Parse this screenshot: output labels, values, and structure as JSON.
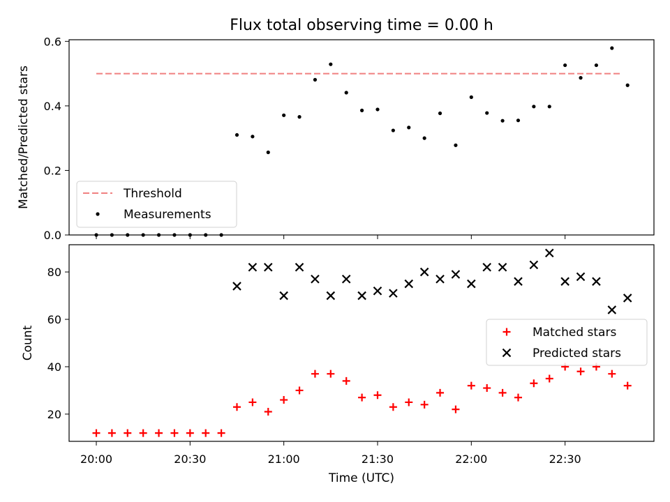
{
  "title": "Flux total observing time = 0.00 h",
  "chart_data": [
    {
      "type": "scatter",
      "name": "ratio-panel",
      "ylabel": "Matched/Predicted stars",
      "xlabel": "",
      "ylim": [
        0,
        0.605
      ],
      "y_ticks": [
        0.0,
        0.2,
        0.4,
        0.6
      ],
      "y_tick_labels": [
        "0.0",
        "0.2",
        "0.4",
        "0.6"
      ],
      "threshold": {
        "name": "Threshold",
        "value": 0.5,
        "x_start": "20:00",
        "x_end": "22:48",
        "color": "#f08080"
      },
      "series": [
        {
          "name": "Measurements",
          "color": "#000000",
          "marker": "dot",
          "x": [
            "20:00",
            "20:05",
            "20:10",
            "20:15",
            "20:20",
            "20:25",
            "20:30",
            "20:35",
            "20:40",
            "20:45",
            "20:50",
            "20:55",
            "21:00",
            "21:05",
            "21:10",
            "21:15",
            "21:20",
            "21:25",
            "21:30",
            "21:35",
            "21:40",
            "21:45",
            "21:50",
            "21:55",
            "22:00",
            "22:05",
            "22:10",
            "22:15",
            "22:20",
            "22:25",
            "22:30",
            "22:35",
            "22:40",
            "22:45",
            "22:50"
          ],
          "y": [
            0.0,
            0.0,
            0.0,
            0.0,
            0.0,
            0.0,
            0.0,
            0.0,
            0.0,
            0.31,
            0.305,
            0.256,
            0.371,
            0.366,
            0.481,
            0.529,
            0.441,
            0.386,
            0.389,
            0.324,
            0.333,
            0.3,
            0.377,
            0.278,
            0.427,
            0.378,
            0.354,
            0.355,
            0.398,
            0.398,
            0.526,
            0.487,
            0.526,
            0.579,
            0.464
          ]
        }
      ],
      "legend": {
        "placement": "lower-left",
        "entries": [
          "Threshold",
          "Measurements"
        ]
      }
    },
    {
      "type": "scatter",
      "name": "count-panel",
      "ylabel": "Count",
      "xlabel": "Time (UTC)",
      "ylim": [
        8.5,
        91.5
      ],
      "y_ticks": [
        20,
        40,
        60,
        80
      ],
      "y_tick_labels": [
        "20",
        "40",
        "60",
        "80"
      ],
      "x_ticks": [
        "20:00",
        "20:30",
        "21:00",
        "21:30",
        "22:00",
        "22:30"
      ],
      "x_tick_labels": [
        "20:00",
        "20:30",
        "21:00",
        "21:30",
        "22:00",
        "22:30"
      ],
      "series": [
        {
          "name": "Matched stars",
          "color": "#ff0000",
          "marker": "plus",
          "x": [
            "20:00",
            "20:05",
            "20:10",
            "20:15",
            "20:20",
            "20:25",
            "20:30",
            "20:35",
            "20:40",
            "20:45",
            "20:50",
            "20:55",
            "21:00",
            "21:05",
            "21:10",
            "21:15",
            "21:20",
            "21:25",
            "21:30",
            "21:35",
            "21:40",
            "21:45",
            "21:50",
            "21:55",
            "22:00",
            "22:05",
            "22:10",
            "22:15",
            "22:20",
            "22:25",
            "22:30",
            "22:35",
            "22:40",
            "22:45",
            "22:50"
          ],
          "y": [
            12,
            12,
            12,
            12,
            12,
            12,
            12,
            12,
            12,
            23,
            25,
            21,
            26,
            30,
            37,
            37,
            34,
            27,
            28,
            23,
            25,
            24,
            29,
            22,
            32,
            31,
            29,
            27,
            33,
            35,
            40,
            38,
            40,
            37,
            32
          ]
        },
        {
          "name": "Predicted stars",
          "color": "#000000",
          "marker": "x",
          "x": [
            "20:45",
            "20:50",
            "20:55",
            "21:00",
            "21:05",
            "21:10",
            "21:15",
            "21:20",
            "21:25",
            "21:30",
            "21:35",
            "21:40",
            "21:45",
            "21:50",
            "21:55",
            "22:00",
            "22:05",
            "22:10",
            "22:15",
            "22:20",
            "22:25",
            "22:30",
            "22:35",
            "22:40",
            "22:45",
            "22:50"
          ],
          "y": [
            74,
            82,
            82,
            70,
            82,
            77,
            70,
            77,
            70,
            72,
            71,
            75,
            80,
            77,
            79,
            75,
            82,
            82,
            76,
            83,
            88,
            76,
            78,
            76,
            64,
            69
          ]
        }
      ],
      "legend": {
        "placement": "center-right",
        "entries": [
          "Matched stars",
          "Predicted stars"
        ]
      }
    }
  ]
}
